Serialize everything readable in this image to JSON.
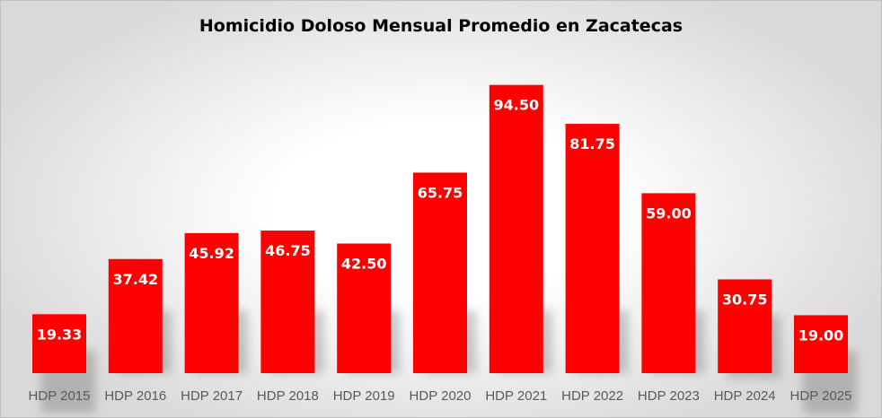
{
  "chart_data": {
    "type": "bar",
    "title": "Homicidio Doloso Mensual Promedio en Zacatecas",
    "categories": [
      "HDP 2015",
      "HDP 2016",
      "HDP 2017",
      "HDP 2018",
      "HDP 2019",
      "HDP 2020",
      "HDP 2021",
      "HDP 2022",
      "HDP 2023",
      "HDP 2024",
      "HDP 2025"
    ],
    "values": [
      19.33,
      37.42,
      45.92,
      46.75,
      42.5,
      65.75,
      94.5,
      81.75,
      59.0,
      30.75,
      19.0
    ],
    "data_labels": [
      "19.33",
      "37.42",
      "45.92",
      "46.75",
      "42.50",
      "65.75",
      "94.50",
      "81.75",
      "59.00",
      "30.75",
      "19.00"
    ],
    "xlabel": "",
    "ylabel": "",
    "ylim": [
      0,
      100
    ],
    "grid": false,
    "legend": "none",
    "bar_color": "#ff0000",
    "label_color": "#ffffff",
    "tick_color": "#595959"
  }
}
